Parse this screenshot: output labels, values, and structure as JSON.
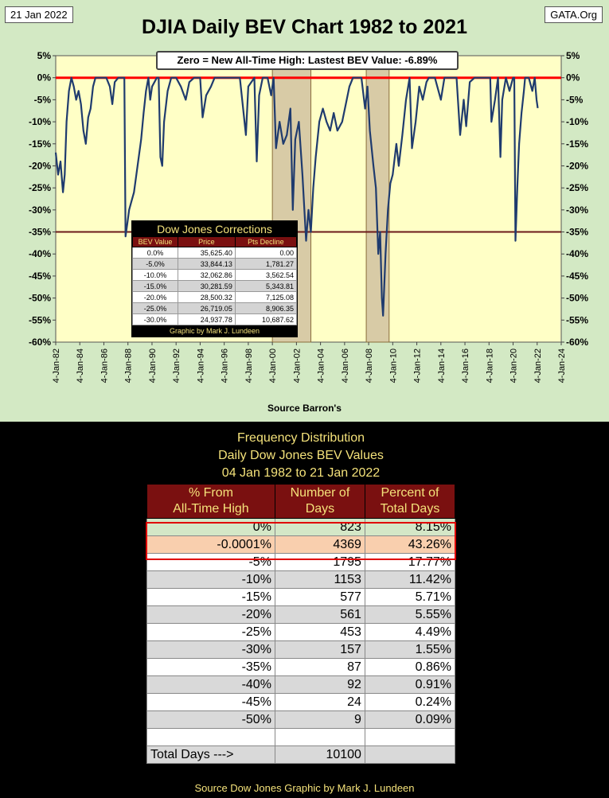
{
  "header": {
    "date": "21 Jan 2022",
    "brand": "GATA.Org",
    "title": "DJIA Daily BEV Chart 1982 to 2021",
    "source": "Source Barron's"
  },
  "chart_data": {
    "type": "line",
    "title": "DJIA Daily BEV Chart 1982 to 2021",
    "annotation": "Zero = New All-Time High: Lastest BEV Value: -6.89%",
    "xlabel": "Source Barron's",
    "ylabel": "",
    "ylim": [
      -60,
      5
    ],
    "xlim": [
      1982,
      2024
    ],
    "y_ticks": [
      "5%",
      "0%",
      "-5%",
      "-10%",
      "-15%",
      "-20%",
      "-25%",
      "-30%",
      "-35%",
      "-40%",
      "-45%",
      "-50%",
      "-55%",
      "-60%"
    ],
    "x_ticks": [
      "4-Jan-82",
      "4-Jan-84",
      "4-Jan-86",
      "4-Jan-88",
      "4-Jan-90",
      "4-Jan-92",
      "4-Jan-94",
      "4-Jan-96",
      "4-Jan-98",
      "4-Jan-00",
      "4-Jan-02",
      "4-Jan-04",
      "4-Jan-06",
      "4-Jan-08",
      "4-Jan-10",
      "4-Jan-12",
      "4-Jan-14",
      "4-Jan-16",
      "4-Jan-18",
      "4-Jan-20",
      "4-Jan-22",
      "4-Jan-24"
    ],
    "reference_lines": [
      {
        "y": 0,
        "color": "#ff0000"
      },
      {
        "y": -35,
        "color": "#6b1a1a"
      }
    ],
    "shaded_ranges": [
      [
        2000.0,
        2003.2
      ],
      [
        2007.8,
        2009.7
      ]
    ],
    "series": [
      {
        "name": "DJIA BEV",
        "color": "#1f3b6e",
        "points": [
          [
            1982.0,
            -17
          ],
          [
            1982.2,
            -22
          ],
          [
            1982.4,
            -19
          ],
          [
            1982.6,
            -26
          ],
          [
            1982.75,
            -22
          ],
          [
            1982.9,
            -10
          ],
          [
            1983.1,
            -3
          ],
          [
            1983.3,
            0
          ],
          [
            1983.5,
            -2
          ],
          [
            1983.7,
            -5
          ],
          [
            1983.9,
            -3
          ],
          [
            1984.1,
            -6
          ],
          [
            1984.3,
            -12
          ],
          [
            1984.5,
            -15
          ],
          [
            1984.7,
            -9
          ],
          [
            1984.9,
            -7
          ],
          [
            1985.1,
            -2
          ],
          [
            1985.3,
            0
          ],
          [
            1985.6,
            0
          ],
          [
            1985.9,
            0
          ],
          [
            1986.2,
            0
          ],
          [
            1986.5,
            -2
          ],
          [
            1986.7,
            -6
          ],
          [
            1986.9,
            -1
          ],
          [
            1987.2,
            0
          ],
          [
            1987.5,
            0
          ],
          [
            1987.7,
            0
          ],
          [
            1987.8,
            -36
          ],
          [
            1987.95,
            -33
          ],
          [
            1988.1,
            -30
          ],
          [
            1988.3,
            -28
          ],
          [
            1988.5,
            -26
          ],
          [
            1988.7,
            -22
          ],
          [
            1988.9,
            -18
          ],
          [
            1989.1,
            -14
          ],
          [
            1989.3,
            -8
          ],
          [
            1989.5,
            -3
          ],
          [
            1989.7,
            0
          ],
          [
            1989.85,
            -5
          ],
          [
            1990.0,
            -2
          ],
          [
            1990.4,
            0
          ],
          [
            1990.55,
            0
          ],
          [
            1990.7,
            -18
          ],
          [
            1990.85,
            -20
          ],
          [
            1991.0,
            -10
          ],
          [
            1991.3,
            -3
          ],
          [
            1991.6,
            0
          ],
          [
            1992.0,
            0
          ],
          [
            1992.4,
            -2
          ],
          [
            1992.8,
            -5
          ],
          [
            1993.1,
            -1
          ],
          [
            1993.5,
            0
          ],
          [
            1994.0,
            0
          ],
          [
            1994.2,
            -9
          ],
          [
            1994.5,
            -4
          ],
          [
            1994.9,
            -2
          ],
          [
            1995.2,
            0
          ],
          [
            1995.8,
            0
          ],
          [
            1996.3,
            0
          ],
          [
            1996.8,
            0
          ],
          [
            1997.3,
            0
          ],
          [
            1997.8,
            -13
          ],
          [
            1998.0,
            -2
          ],
          [
            1998.5,
            0
          ],
          [
            1998.7,
            -19
          ],
          [
            1998.9,
            -4
          ],
          [
            1999.2,
            0
          ],
          [
            1999.6,
            0
          ],
          [
            1999.9,
            -4
          ],
          [
            2000.1,
            0
          ],
          [
            2000.3,
            -16
          ],
          [
            2000.6,
            -10
          ],
          [
            2000.9,
            -15
          ],
          [
            2001.2,
            -13
          ],
          [
            2001.5,
            -7
          ],
          [
            2001.7,
            -30
          ],
          [
            2001.9,
            -14
          ],
          [
            2002.2,
            -10
          ],
          [
            2002.5,
            -22
          ],
          [
            2002.8,
            -37
          ],
          [
            2003.0,
            -30
          ],
          [
            2003.2,
            -35
          ],
          [
            2003.4,
            -25
          ],
          [
            2003.6,
            -18
          ],
          [
            2003.9,
            -10
          ],
          [
            2004.2,
            -7
          ],
          [
            2004.5,
            -10
          ],
          [
            2004.8,
            -12
          ],
          [
            2005.1,
            -8
          ],
          [
            2005.4,
            -12
          ],
          [
            2005.8,
            -10
          ],
          [
            2006.1,
            -6
          ],
          [
            2006.4,
            -2
          ],
          [
            2006.7,
            0
          ],
          [
            2007.0,
            0
          ],
          [
            2007.4,
            0
          ],
          [
            2007.7,
            -7
          ],
          [
            2007.9,
            -2
          ],
          [
            2008.1,
            -12
          ],
          [
            2008.4,
            -20
          ],
          [
            2008.6,
            -25
          ],
          [
            2008.8,
            -40
          ],
          [
            2008.95,
            -35
          ],
          [
            2009.1,
            -50
          ],
          [
            2009.2,
            -54
          ],
          [
            2009.4,
            -40
          ],
          [
            2009.6,
            -30
          ],
          [
            2009.8,
            -24
          ],
          [
            2010.0,
            -22
          ],
          [
            2010.3,
            -15
          ],
          [
            2010.5,
            -20
          ],
          [
            2010.8,
            -13
          ],
          [
            2011.1,
            -5
          ],
          [
            2011.4,
            0
          ],
          [
            2011.6,
            -16
          ],
          [
            2011.9,
            -10
          ],
          [
            2012.2,
            -2
          ],
          [
            2012.5,
            -5
          ],
          [
            2012.8,
            -1
          ],
          [
            2013.0,
            0
          ],
          [
            2013.5,
            0
          ],
          [
            2014.0,
            -5
          ],
          [
            2014.3,
            0
          ],
          [
            2014.8,
            0
          ],
          [
            2015.3,
            0
          ],
          [
            2015.6,
            -13
          ],
          [
            2015.9,
            -5
          ],
          [
            2016.1,
            -11
          ],
          [
            2016.4,
            -1
          ],
          [
            2016.8,
            0
          ],
          [
            2017.3,
            0
          ],
          [
            2017.8,
            0
          ],
          [
            2018.1,
            0
          ],
          [
            2018.2,
            -10
          ],
          [
            2018.5,
            -5
          ],
          [
            2018.75,
            0
          ],
          [
            2018.95,
            -18
          ],
          [
            2019.1,
            -5
          ],
          [
            2019.4,
            0
          ],
          [
            2019.7,
            -3
          ],
          [
            2020.0,
            0
          ],
          [
            2020.1,
            0
          ],
          [
            2020.2,
            -37
          ],
          [
            2020.35,
            -25
          ],
          [
            2020.5,
            -15
          ],
          [
            2020.7,
            -8
          ],
          [
            2020.9,
            -3
          ],
          [
            2021.0,
            0
          ],
          [
            2021.3,
            0
          ],
          [
            2021.6,
            -3
          ],
          [
            2021.8,
            0
          ],
          [
            2021.95,
            -5
          ],
          [
            2022.05,
            -6.89
          ]
        ]
      }
    ]
  },
  "corrections": {
    "title": "Dow Jones Corrections",
    "headers": [
      "BEV Value",
      "Price",
      "Pts Decline"
    ],
    "rows": [
      [
        "0.0%",
        "35,625.40",
        "0.00"
      ],
      [
        "-5.0%",
        "33,844.13",
        "1,781.27"
      ],
      [
        "-10.0%",
        "32,062.86",
        "3,562.54"
      ],
      [
        "-15.0%",
        "30,281.59",
        "5,343.81"
      ],
      [
        "-20.0%",
        "28,500.32",
        "7,125.08"
      ],
      [
        "-25.0%",
        "26,719.05",
        "8,906.35"
      ],
      [
        "-30.0%",
        "24,937.78",
        "10,687.62"
      ]
    ],
    "footer": "Graphic by Mark J. Lundeen"
  },
  "frequency": {
    "title_lines": [
      "Frequency Distribution",
      "Daily Dow Jones BEV Values",
      "04 Jan 1982 to 21 Jan 2022"
    ],
    "headers": [
      [
        "% From",
        "All-Time High"
      ],
      [
        "Number of",
        "Days"
      ],
      [
        "Percent of",
        "Total Days"
      ]
    ],
    "rows": [
      [
        "0%",
        "823",
        "8.15%"
      ],
      [
        "-0.0001%",
        "4369",
        "43.26%"
      ],
      [
        "-5%",
        "1795",
        "17.77%"
      ],
      [
        "-10%",
        "1153",
        "11.42%"
      ],
      [
        "-15%",
        "577",
        "5.71%"
      ],
      [
        "-20%",
        "561",
        "5.55%"
      ],
      [
        "-25%",
        "453",
        "4.49%"
      ],
      [
        "-30%",
        "157",
        "1.55%"
      ],
      [
        "-35%",
        "87",
        "0.86%"
      ],
      [
        "-40%",
        "92",
        "0.91%"
      ],
      [
        "-45%",
        "24",
        "0.24%"
      ],
      [
        "-50%",
        "9",
        "0.09%"
      ]
    ],
    "total_label": "Total Days --->",
    "total_value": "10100",
    "credit": "Source Dow Jones   Graphic by Mark J. Lundeen"
  }
}
